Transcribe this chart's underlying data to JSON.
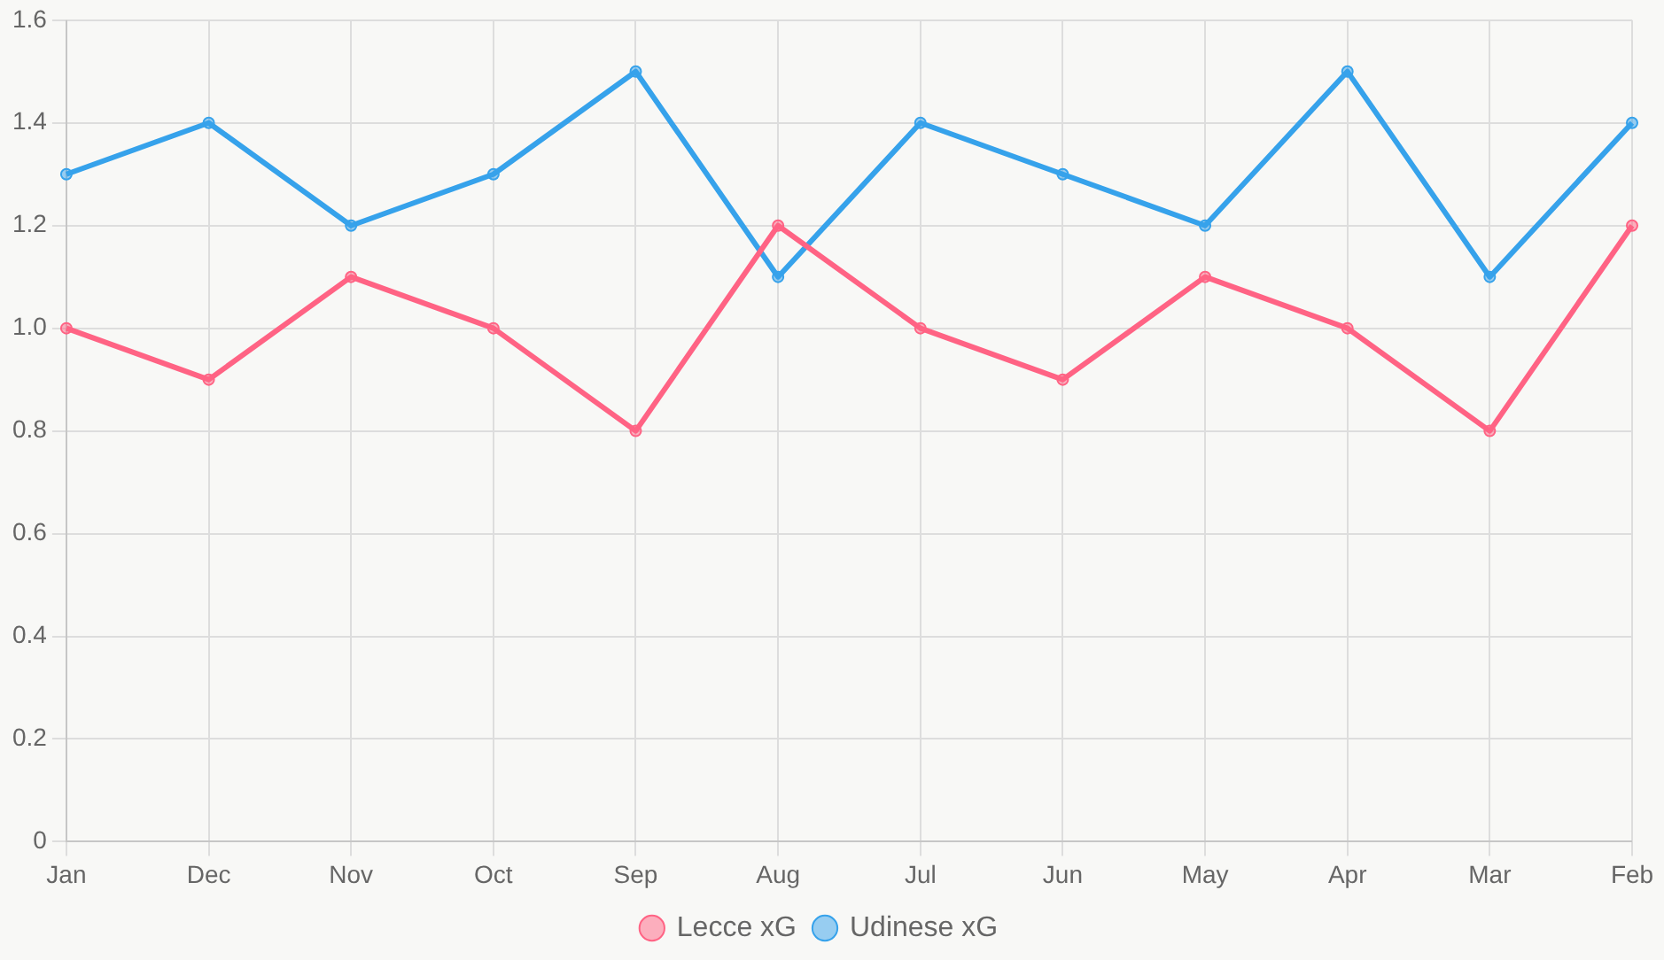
{
  "chart_data": {
    "type": "line",
    "categories": [
      "Jan",
      "Dec",
      "Nov",
      "Oct",
      "Sep",
      "Aug",
      "Jul",
      "Jun",
      "May",
      "Apr",
      "Mar",
      "Feb"
    ],
    "series": [
      {
        "name": "Lecce xG",
        "color": "#ff6384",
        "values": [
          1.0,
          0.9,
          1.1,
          1.0,
          0.8,
          1.2,
          1.0,
          0.9,
          1.1,
          1.0,
          0.8,
          1.2
        ]
      },
      {
        "name": "Udinese xG",
        "color": "#36a2eb",
        "values": [
          1.3,
          1.4,
          1.2,
          1.3,
          1.5,
          1.1,
          1.4,
          1.3,
          1.2,
          1.5,
          1.1,
          1.4
        ]
      }
    ],
    "ylim": [
      0,
      1.6
    ],
    "yticks": [
      0,
      0.2,
      0.4,
      0.6,
      0.8,
      {
        "value": 1,
        "label": "1.0"
      },
      1.2,
      1.4,
      1.6
    ],
    "grid": true,
    "legend": "bottom",
    "marker": "circle",
    "line_style": "solid"
  }
}
